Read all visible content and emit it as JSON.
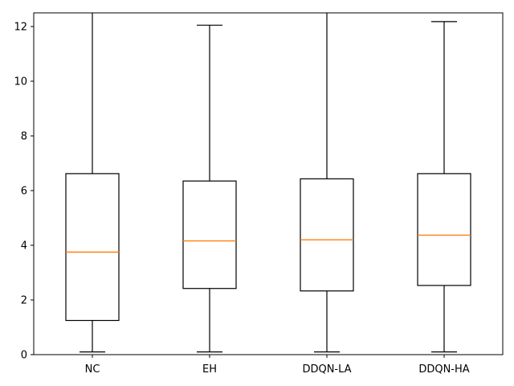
{
  "chart_data": {
    "type": "box",
    "title": "",
    "xlabel": "",
    "ylabel": "",
    "categories": [
      "NC",
      "EH",
      "DDQN-LA",
      "DDQN-HA"
    ],
    "yticks": [
      "0",
      "2",
      "4",
      "6",
      "8",
      "10",
      "12"
    ],
    "ylim": [
      0,
      12.5
    ],
    "grid": false,
    "colors": {
      "box": "#000000",
      "median": "#ff7f0e",
      "axes": "#000000"
    },
    "boxes": [
      {
        "name": "NC",
        "whisker_low": 0.1,
        "q1": 1.25,
        "median": 3.75,
        "q3": 6.62,
        "whisker_high": 12.5
      },
      {
        "name": "EH",
        "whisker_low": 0.1,
        "q1": 2.42,
        "median": 4.16,
        "q3": 6.35,
        "whisker_high": 12.05
      },
      {
        "name": "DDQN-LA",
        "whisker_low": 0.1,
        "q1": 2.33,
        "median": 4.2,
        "q3": 6.43,
        "whisker_high": 12.5
      },
      {
        "name": "DDQN-HA",
        "whisker_low": 0.1,
        "q1": 2.53,
        "median": 4.37,
        "q3": 6.62,
        "whisker_high": 12.18
      }
    ]
  }
}
